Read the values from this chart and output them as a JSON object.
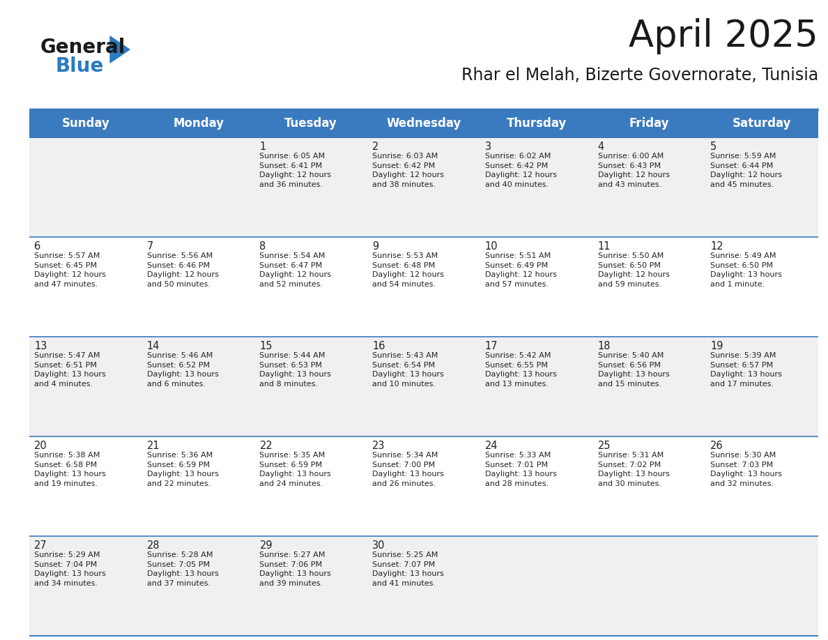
{
  "title": "April 2025",
  "subtitle": "Rhar el Melah, Bizerte Governorate, Tunisia",
  "header_bg_color": "#3a7abf",
  "header_text_color": "#ffffff",
  "header_font_size": 12,
  "day_names": [
    "Sunday",
    "Monday",
    "Tuesday",
    "Wednesday",
    "Thursday",
    "Friday",
    "Saturday"
  ],
  "title_font_size": 38,
  "subtitle_font_size": 17,
  "cell_text_color": "#222222",
  "cell_number_font_size": 10.5,
  "cell_info_font_size": 8.0,
  "row_bg_colors": [
    "#f0f0f0",
    "#ffffff"
  ],
  "grid_line_color": "#3a7abf",
  "logo_color_general": "#1a1a1a",
  "logo_color_blue": "#2b7bbf",
  "weeks": [
    [
      {
        "day": null,
        "info": null
      },
      {
        "day": null,
        "info": null
      },
      {
        "day": "1",
        "info": "Sunrise: 6:05 AM\nSunset: 6:41 PM\nDaylight: 12 hours\nand 36 minutes."
      },
      {
        "day": "2",
        "info": "Sunrise: 6:03 AM\nSunset: 6:42 PM\nDaylight: 12 hours\nand 38 minutes."
      },
      {
        "day": "3",
        "info": "Sunrise: 6:02 AM\nSunset: 6:42 PM\nDaylight: 12 hours\nand 40 minutes."
      },
      {
        "day": "4",
        "info": "Sunrise: 6:00 AM\nSunset: 6:43 PM\nDaylight: 12 hours\nand 43 minutes."
      },
      {
        "day": "5",
        "info": "Sunrise: 5:59 AM\nSunset: 6:44 PM\nDaylight: 12 hours\nand 45 minutes."
      }
    ],
    [
      {
        "day": "6",
        "info": "Sunrise: 5:57 AM\nSunset: 6:45 PM\nDaylight: 12 hours\nand 47 minutes."
      },
      {
        "day": "7",
        "info": "Sunrise: 5:56 AM\nSunset: 6:46 PM\nDaylight: 12 hours\nand 50 minutes."
      },
      {
        "day": "8",
        "info": "Sunrise: 5:54 AM\nSunset: 6:47 PM\nDaylight: 12 hours\nand 52 minutes."
      },
      {
        "day": "9",
        "info": "Sunrise: 5:53 AM\nSunset: 6:48 PM\nDaylight: 12 hours\nand 54 minutes."
      },
      {
        "day": "10",
        "info": "Sunrise: 5:51 AM\nSunset: 6:49 PM\nDaylight: 12 hours\nand 57 minutes."
      },
      {
        "day": "11",
        "info": "Sunrise: 5:50 AM\nSunset: 6:50 PM\nDaylight: 12 hours\nand 59 minutes."
      },
      {
        "day": "12",
        "info": "Sunrise: 5:49 AM\nSunset: 6:50 PM\nDaylight: 13 hours\nand 1 minute."
      }
    ],
    [
      {
        "day": "13",
        "info": "Sunrise: 5:47 AM\nSunset: 6:51 PM\nDaylight: 13 hours\nand 4 minutes."
      },
      {
        "day": "14",
        "info": "Sunrise: 5:46 AM\nSunset: 6:52 PM\nDaylight: 13 hours\nand 6 minutes."
      },
      {
        "day": "15",
        "info": "Sunrise: 5:44 AM\nSunset: 6:53 PM\nDaylight: 13 hours\nand 8 minutes."
      },
      {
        "day": "16",
        "info": "Sunrise: 5:43 AM\nSunset: 6:54 PM\nDaylight: 13 hours\nand 10 minutes."
      },
      {
        "day": "17",
        "info": "Sunrise: 5:42 AM\nSunset: 6:55 PM\nDaylight: 13 hours\nand 13 minutes."
      },
      {
        "day": "18",
        "info": "Sunrise: 5:40 AM\nSunset: 6:56 PM\nDaylight: 13 hours\nand 15 minutes."
      },
      {
        "day": "19",
        "info": "Sunrise: 5:39 AM\nSunset: 6:57 PM\nDaylight: 13 hours\nand 17 minutes."
      }
    ],
    [
      {
        "day": "20",
        "info": "Sunrise: 5:38 AM\nSunset: 6:58 PM\nDaylight: 13 hours\nand 19 minutes."
      },
      {
        "day": "21",
        "info": "Sunrise: 5:36 AM\nSunset: 6:59 PM\nDaylight: 13 hours\nand 22 minutes."
      },
      {
        "day": "22",
        "info": "Sunrise: 5:35 AM\nSunset: 6:59 PM\nDaylight: 13 hours\nand 24 minutes."
      },
      {
        "day": "23",
        "info": "Sunrise: 5:34 AM\nSunset: 7:00 PM\nDaylight: 13 hours\nand 26 minutes."
      },
      {
        "day": "24",
        "info": "Sunrise: 5:33 AM\nSunset: 7:01 PM\nDaylight: 13 hours\nand 28 minutes."
      },
      {
        "day": "25",
        "info": "Sunrise: 5:31 AM\nSunset: 7:02 PM\nDaylight: 13 hours\nand 30 minutes."
      },
      {
        "day": "26",
        "info": "Sunrise: 5:30 AM\nSunset: 7:03 PM\nDaylight: 13 hours\nand 32 minutes."
      }
    ],
    [
      {
        "day": "27",
        "info": "Sunrise: 5:29 AM\nSunset: 7:04 PM\nDaylight: 13 hours\nand 34 minutes."
      },
      {
        "day": "28",
        "info": "Sunrise: 5:28 AM\nSunset: 7:05 PM\nDaylight: 13 hours\nand 37 minutes."
      },
      {
        "day": "29",
        "info": "Sunrise: 5:27 AM\nSunset: 7:06 PM\nDaylight: 13 hours\nand 39 minutes."
      },
      {
        "day": "30",
        "info": "Sunrise: 5:25 AM\nSunset: 7:07 PM\nDaylight: 13 hours\nand 41 minutes."
      },
      {
        "day": null,
        "info": null
      },
      {
        "day": null,
        "info": null
      },
      {
        "day": null,
        "info": null
      }
    ]
  ]
}
